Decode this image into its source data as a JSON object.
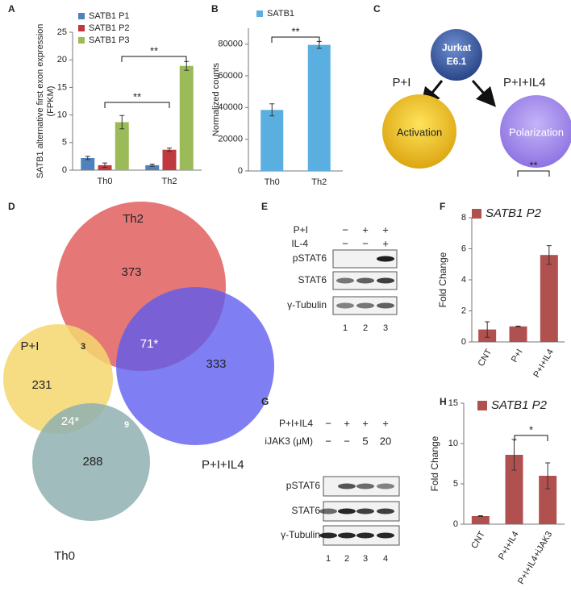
{
  "panels": [
    "A",
    "B",
    "C",
    "D",
    "E",
    "F",
    "G",
    "H"
  ],
  "chart_data": [
    {
      "type": "bar",
      "ylabel": [
        "SATB1 alternative first exon expression",
        "(FPKM)"
      ],
      "categories": [
        "Th0",
        "Th2"
      ],
      "series": [
        {
          "name": "SATB1 P1",
          "color": "#4f81bd",
          "values": [
            2.2,
            0.9
          ],
          "errors": [
            0.3,
            0.2
          ]
        },
        {
          "name": "SATB1 P2",
          "color": "#c0393e",
          "values": [
            0.9,
            3.7
          ],
          "errors": [
            0.4,
            0.3
          ]
        },
        {
          "name": "SATB1 P3",
          "color": "#9bbb59",
          "values": [
            8.7,
            18.9
          ],
          "errors": [
            1.2,
            0.8
          ]
        }
      ],
      "ylim": [
        0,
        25
      ],
      "yticks": [
        0,
        5,
        10,
        15,
        20,
        25
      ],
      "grid": false,
      "legend": "top-left",
      "annotations": [
        "**",
        "**"
      ]
    },
    {
      "type": "bar",
      "ylabel": [
        "Normalized counts"
      ],
      "categories": [
        "Th0",
        "Th2"
      ],
      "series": [
        {
          "name": "SATB1",
          "color": "#5aafe0",
          "values": [
            38500,
            79500
          ],
          "errors": [
            3800,
            2200
          ]
        }
      ],
      "ylim": [
        0,
        90000
      ],
      "yticks": [
        0,
        20000,
        40000,
        60000,
        80000
      ],
      "grid": false,
      "legend": "top-left",
      "annotations": [
        "**"
      ]
    },
    {
      "type": "bar",
      "ylabel": [
        "Fold Change"
      ],
      "categories": [
        "CNT",
        "P+I",
        "P+I+IL4"
      ],
      "series": [
        {
          "name": "SATB1 P2",
          "color": "#b0504f",
          "values": [
            0.8,
            1.0,
            5.6
          ],
          "errors": [
            0.5,
            0.02,
            0.6
          ]
        }
      ],
      "ylim": [
        0,
        8
      ],
      "yticks": [
        0,
        2,
        4,
        6,
        8
      ],
      "grid": false,
      "legend": "top-left",
      "annotations": [
        "**"
      ]
    },
    {
      "type": "bar",
      "ylabel": [
        "Fold Change"
      ],
      "categories": [
        "CNT",
        "P+I+IL4",
        "P+I+IL4+iJAK3"
      ],
      "series": [
        {
          "name": "SATB1 P2",
          "color": "#b0504f",
          "values": [
            1.0,
            8.6,
            6.0
          ],
          "errors": [
            0.05,
            1.9,
            1.6
          ]
        }
      ],
      "ylim": [
        0,
        15
      ],
      "yticks": [
        0,
        5,
        10,
        15
      ],
      "grid": false,
      "legend": "top-left",
      "annotations": [
        "*"
      ]
    }
  ],
  "diagram": {
    "root": [
      "Jurkat",
      "E6.1"
    ],
    "left_arrow": "P+I",
    "right_arrow": "P+I+IL4",
    "left_node": "Activation",
    "right_node": "Polarization"
  },
  "venn": {
    "sets": [
      "Th2",
      "P+I",
      "P+I+IL4",
      "Th0"
    ],
    "counts": [
      "373",
      "231",
      "333",
      "288",
      "3",
      "71*",
      "24*",
      "9"
    ]
  },
  "blot_e": {
    "conditions": [
      {
        "label": "P+I",
        "marks": [
          "−",
          "+",
          "+"
        ]
      },
      {
        "label": "IL-4",
        "marks": [
          "−",
          "−",
          "+"
        ]
      }
    ],
    "rows": [
      "pSTAT6",
      "STAT6",
      "γ-Tubulin"
    ],
    "lanes": [
      "1",
      "2",
      "3"
    ]
  },
  "blot_g": {
    "conditions": [
      {
        "label": "P+I+IL4",
        "marks": [
          "−",
          "+",
          "+",
          "+"
        ]
      },
      {
        "label": "iJAK3 (μM)",
        "marks": [
          "−",
          "−",
          "5",
          "20"
        ]
      }
    ],
    "rows": [
      "pSTAT6",
      "STAT6",
      "γ-Tubulin"
    ],
    "lanes": [
      "1",
      "2",
      "3",
      "4"
    ]
  }
}
